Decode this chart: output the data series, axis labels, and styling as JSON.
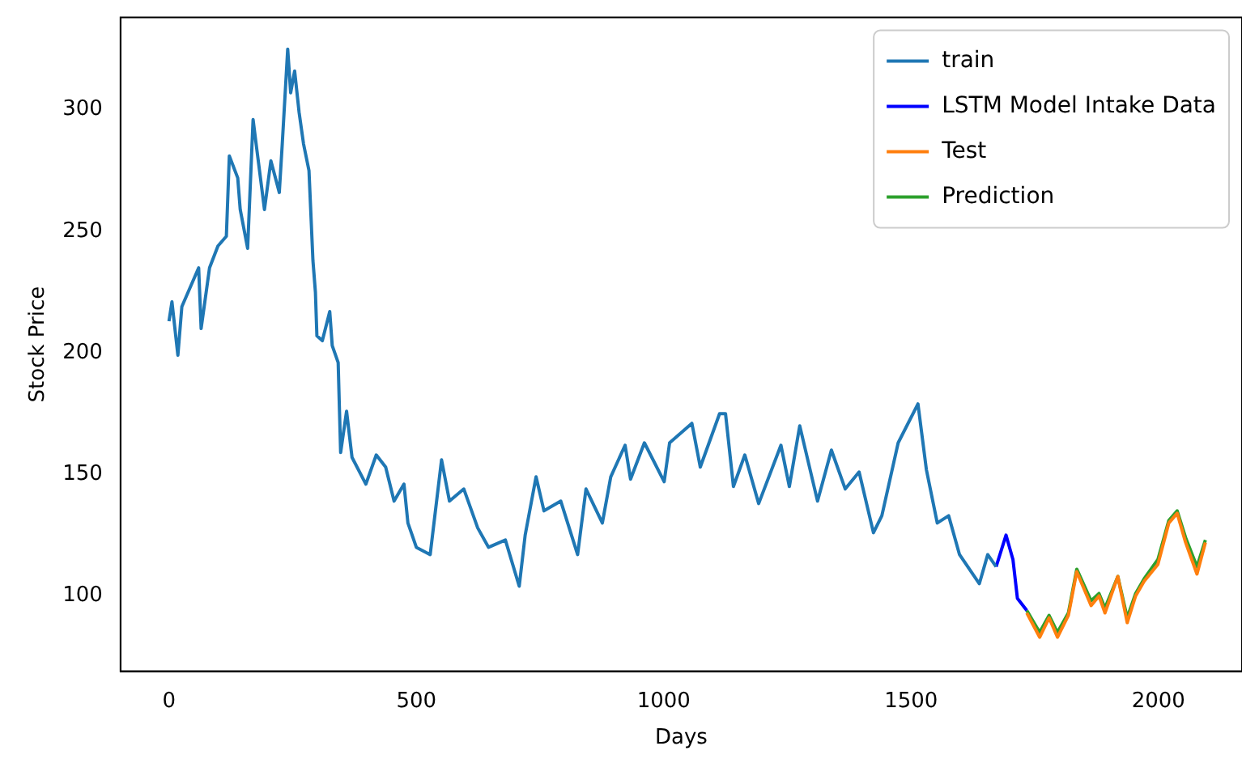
{
  "chart_data": {
    "type": "line",
    "xlabel": "Days",
    "ylabel": "Stock Price",
    "xlim": [
      -98,
      2169
    ],
    "ylim": [
      69,
      338
    ],
    "xticks": [
      0,
      500,
      1000,
      1500,
      2000
    ],
    "yticks": [
      100,
      150,
      200,
      250,
      300
    ],
    "grid": false,
    "legend": "top right",
    "marker": "none",
    "line_style": "solid",
    "series": [
      {
        "name": "train",
        "color": "#1f77b4",
        "x": [
          0,
          6,
          18,
          26,
          60,
          65,
          82,
          99,
          116,
          122,
          139,
          144,
          159,
          170,
          178,
          193,
          206,
          223,
          229,
          240,
          246,
          254,
          263,
          272,
          283,
          291,
          296,
          299,
          310,
          325,
          330,
          342,
          347,
          359,
          370,
          398,
          419,
          438,
          455,
          475,
          483,
          500,
          528,
          551,
          567,
          596,
          624,
          646,
          680,
          708,
          720,
          742,
          758,
          792,
          826,
          843,
          876,
          893,
          922,
          933,
          961,
          1001,
          1012,
          1057,
          1074,
          1113,
          1125,
          1141,
          1164,
          1192,
          1237,
          1254,
          1275,
          1311,
          1339,
          1367,
          1395,
          1424,
          1441,
          1474,
          1514,
          1531,
          1553,
          1576,
          1598,
          1638,
          1655,
          1672
        ],
        "values": [
          213,
          221,
          199,
          219,
          235,
          210,
          235,
          244,
          248,
          281,
          272,
          259,
          243,
          296,
          283,
          259,
          279,
          266,
          286,
          325,
          307,
          316,
          299,
          286,
          275,
          238,
          225,
          207,
          205,
          217,
          203,
          196,
          159,
          176,
          157,
          146,
          158,
          153,
          139,
          146,
          130,
          120,
          117,
          156,
          139,
          144,
          128,
          120,
          123,
          104,
          125,
          149,
          135,
          139,
          117,
          144,
          130,
          149,
          162,
          148,
          163,
          147,
          163,
          171,
          153,
          175,
          175,
          145,
          158,
          138,
          162,
          145,
          170,
          139,
          160,
          144,
          151,
          126,
          133,
          163,
          179,
          152,
          130,
          133,
          117,
          105,
          117,
          112
        ]
      },
      {
        "name": "LSTM Model Intake Data",
        "color": "#0000ff",
        "x": [
          1672,
          1692,
          1706,
          1715,
          1734
        ],
        "values": [
          112,
          125,
          115,
          99,
          94
        ]
      },
      {
        "name": "Test",
        "color": "#ff7f0e",
        "x": [
          1734,
          1760,
          1779,
          1796,
          1818,
          1835,
          1864,
          1880,
          1892,
          1918,
          1937,
          1954,
          1971,
          1999,
          2021,
          2038,
          2055,
          2078,
          2095
        ],
        "values": [
          93,
          83,
          91,
          83,
          92,
          110,
          96,
          100,
          93,
          108,
          89,
          100,
          106,
          113,
          130,
          134,
          122,
          109,
          122
        ]
      },
      {
        "name": "Prediction",
        "color": "#2ca02c",
        "x": [
          1734,
          1760,
          1779,
          1796,
          1818,
          1835,
          1864,
          1880,
          1892,
          1918,
          1937,
          1954,
          1971,
          1999,
          2021,
          2038,
          2055,
          2078,
          2095
        ],
        "values": [
          94,
          85,
          92,
          85,
          93,
          111,
          98,
          101,
          95,
          108,
          91,
          101,
          107,
          115,
          131,
          135,
          124,
          112,
          123
        ]
      }
    ]
  }
}
